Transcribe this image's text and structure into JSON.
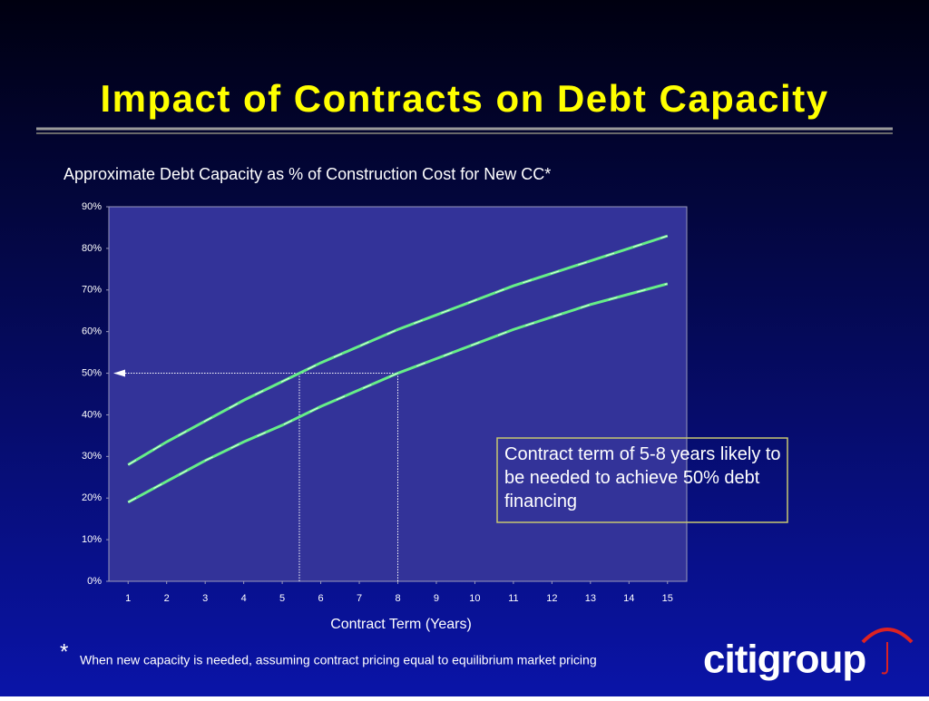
{
  "chart_data": {
    "type": "line",
    "title": "Impact of Contracts on Debt Capacity",
    "subtitle": "Approximate Debt Capacity as % of Construction Cost for New CC*",
    "x_label": "Contract Term (Years)",
    "x": [
      1,
      2,
      3,
      4,
      5,
      6,
      7,
      8,
      9,
      10,
      11,
      12,
      13,
      14,
      15
    ],
    "xlim": [
      0.5,
      15.5
    ],
    "xticks": [
      1,
      2,
      3,
      4,
      5,
      6,
      7,
      8,
      9,
      10,
      11,
      12,
      13,
      14,
      15
    ],
    "ylim": [
      0,
      90
    ],
    "yticks": [
      {
        "value": 0,
        "label": "0%"
      },
      {
        "value": 10,
        "label": "10%"
      },
      {
        "value": 20,
        "label": "20%"
      },
      {
        "value": 30,
        "label": "30%"
      },
      {
        "value": 40,
        "label": "40%"
      },
      {
        "value": 50,
        "label": "50%"
      },
      {
        "value": 60,
        "label": "60%"
      },
      {
        "value": 70,
        "label": "70%"
      },
      {
        "value": 80,
        "label": "80%"
      },
      {
        "value": 90,
        "label": "90%"
      }
    ],
    "series": [
      {
        "color": "#66ee88",
        "values": [
          28,
          33.5,
          38.5,
          43.5,
          48,
          52.5,
          56.5,
          60.5,
          64,
          67.5,
          71,
          74,
          77,
          80,
          83
        ]
      },
      {
        "color": "#66ee88",
        "values": [
          19,
          24,
          29,
          33.5,
          37.5,
          42,
          46,
          50,
          53.5,
          57,
          60.5,
          63.5,
          66.5,
          69,
          71.5
        ]
      }
    ],
    "annotation": "Contract term of 5-8 years likely to be needed to achieve 50% debt financing"
  },
  "footnote_marker": "*",
  "footnote": "When new capacity is needed, assuming contract pricing equal to equilibrium market pricing",
  "logo": "citigroup"
}
